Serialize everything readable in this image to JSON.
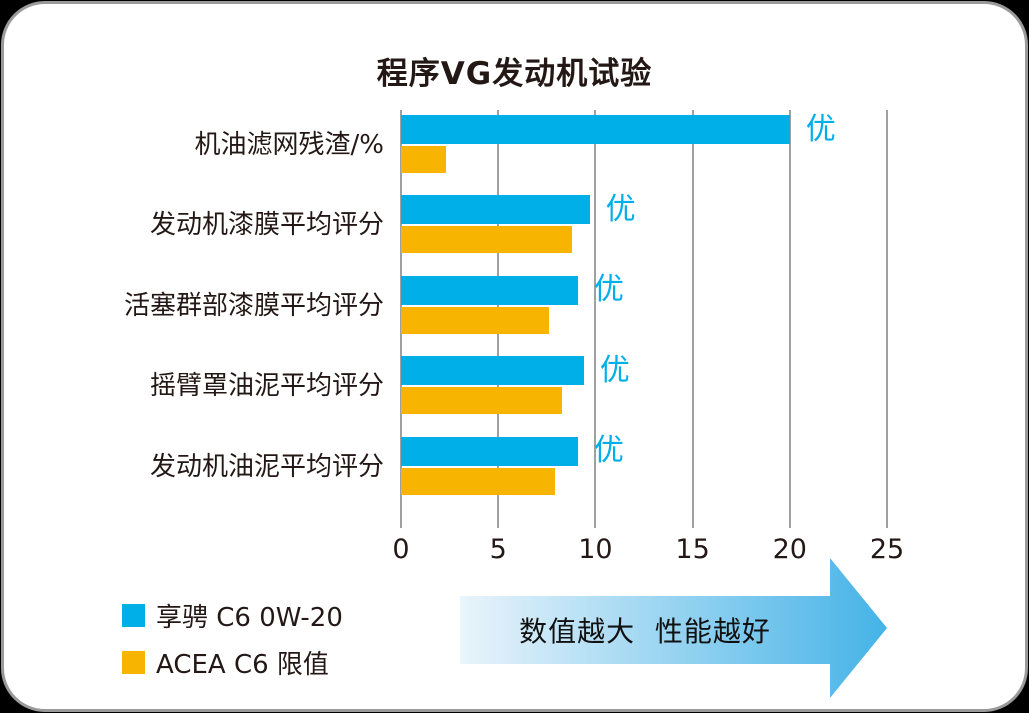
{
  "title": "程序VG发动机试验",
  "colors": {
    "series_blue": "#00AEE8",
    "series_yellow": "#F7B400",
    "text_dark": "#231815",
    "gridline": "#9FA0A0",
    "card_border": "#9A9A9A",
    "background": "#FFFFFF"
  },
  "chart_data": {
    "type": "bar",
    "orientation": "horizontal",
    "title": "程序VG发动机试验",
    "categories": [
      "机油滤网残渣/%",
      "发动机漆膜平均评分",
      "活塞群部漆膜平均评分",
      "摇臂罩油泥平均评分",
      "发动机油泥平均评分"
    ],
    "series": [
      {
        "name": "享骋 C6  0W-20",
        "color": "#00AEE8",
        "values": [
          20.0,
          9.7,
          9.1,
          9.4,
          9.1
        ]
      },
      {
        "name": "ACEA  C6 限值",
        "color": "#F7B400",
        "values": [
          2.3,
          8.8,
          7.6,
          8.3,
          7.9
        ]
      }
    ],
    "bar_annotation": {
      "text": "优",
      "color": "#00AEE8",
      "applies_to_series": 0
    },
    "xlim": [
      0,
      25
    ],
    "xticks": [
      0,
      5,
      10,
      15,
      20,
      25
    ],
    "grid": "vertical",
    "legend_position": "bottom-left"
  },
  "legend": {
    "items": [
      {
        "label": "享骋 C6  0W-20",
        "color": "#00AEE8"
      },
      {
        "label": "ACEA  C6 限值",
        "color": "#F7B400"
      }
    ]
  },
  "annotation_arrow": {
    "text": "数值越大  性能越好",
    "text_color": "#111111",
    "gradient_start": "#EAF4FB",
    "gradient_end": "#45B3E7"
  }
}
